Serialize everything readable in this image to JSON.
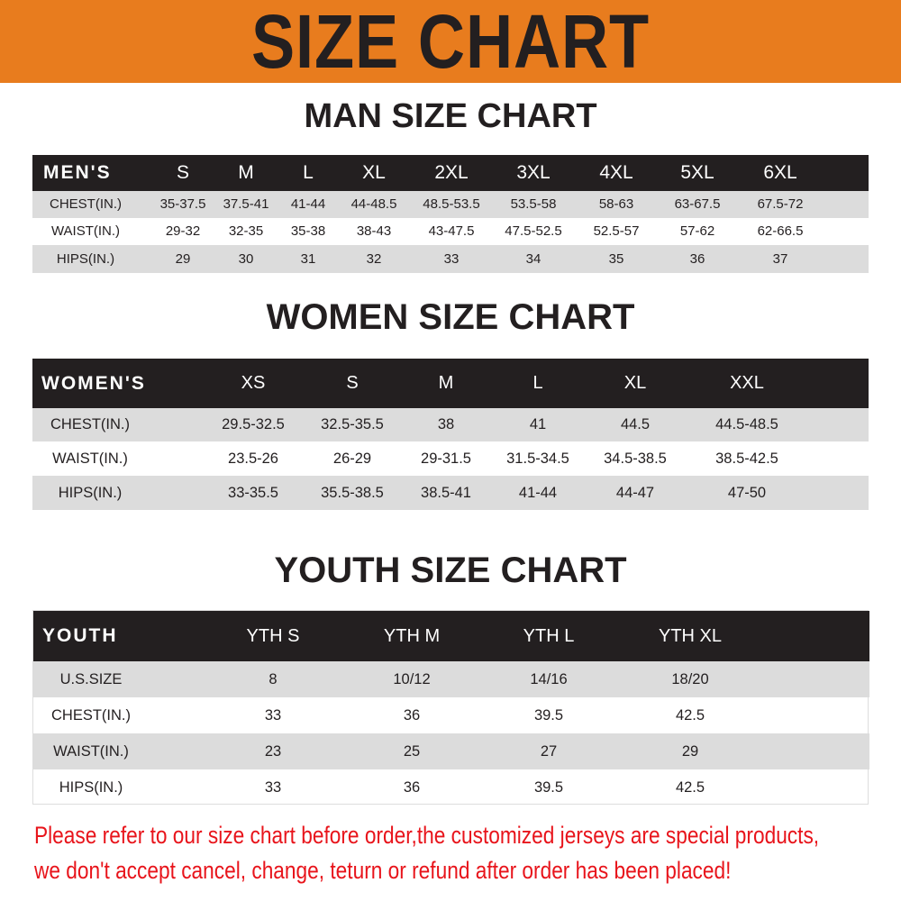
{
  "banner": {
    "title": "SIZE CHART",
    "color": "#e87c1e"
  },
  "men": {
    "title": "MAN SIZE CHART",
    "header": [
      "MEN'S",
      "S",
      "M",
      "L",
      "XL",
      "2XL",
      "3XL",
      "4XL",
      "5XL",
      "6XL"
    ],
    "rows": [
      [
        "CHEST(IN.)",
        "35-37.5",
        "37.5-41",
        "41-44",
        "44-48.5",
        "48.5-53.5",
        "53.5-58",
        "58-63",
        "63-67.5",
        "67.5-72"
      ],
      [
        "WAIST(IN.)",
        "29-32",
        "32-35",
        "35-38",
        "38-43",
        "43-47.5",
        "47.5-52.5",
        "52.5-57",
        "57-62",
        "62-66.5"
      ],
      [
        "HIPS(IN.)",
        "29",
        "30",
        "31",
        "32",
        "33",
        "34",
        "35",
        "36",
        "37"
      ]
    ]
  },
  "women": {
    "title": "WOMEN SIZE CHART",
    "header": [
      "WOMEN'S",
      "XS",
      "S",
      "M",
      "L",
      "XL",
      "XXL"
    ],
    "rows": [
      [
        "CHEST(IN.)",
        "29.5-32.5",
        "32.5-35.5",
        "38",
        "41",
        "44.5",
        "44.5-48.5"
      ],
      [
        "WAIST(IN.)",
        "23.5-26",
        "26-29",
        "29-31.5",
        "31.5-34.5",
        "34.5-38.5",
        "38.5-42.5"
      ],
      [
        "HIPS(IN.)",
        "33-35.5",
        "35.5-38.5",
        "38.5-41",
        "41-44",
        "44-47",
        "47-50"
      ]
    ]
  },
  "youth": {
    "title": "YOUTH SIZE CHART",
    "header": [
      "YOUTH",
      "YTH S",
      "YTH M",
      "YTH L",
      "YTH XL"
    ],
    "rows": [
      [
        "U.S.SIZE",
        "8",
        "10/12",
        "14/16",
        "18/20"
      ],
      [
        "CHEST(IN.)",
        "33",
        "36",
        "39.5",
        "42.5"
      ],
      [
        "WAIST(IN.)",
        "23",
        "25",
        "27",
        "29"
      ],
      [
        "HIPS(IN.)",
        "33",
        "36",
        "39.5",
        "42.5"
      ]
    ]
  },
  "notice": {
    "line1": "Please refer to our size chart before order,the customized jerseys are special products,",
    "line2": "we don't accept cancel, change, teturn or refund after order has been placed!",
    "color": "#e8141b"
  }
}
